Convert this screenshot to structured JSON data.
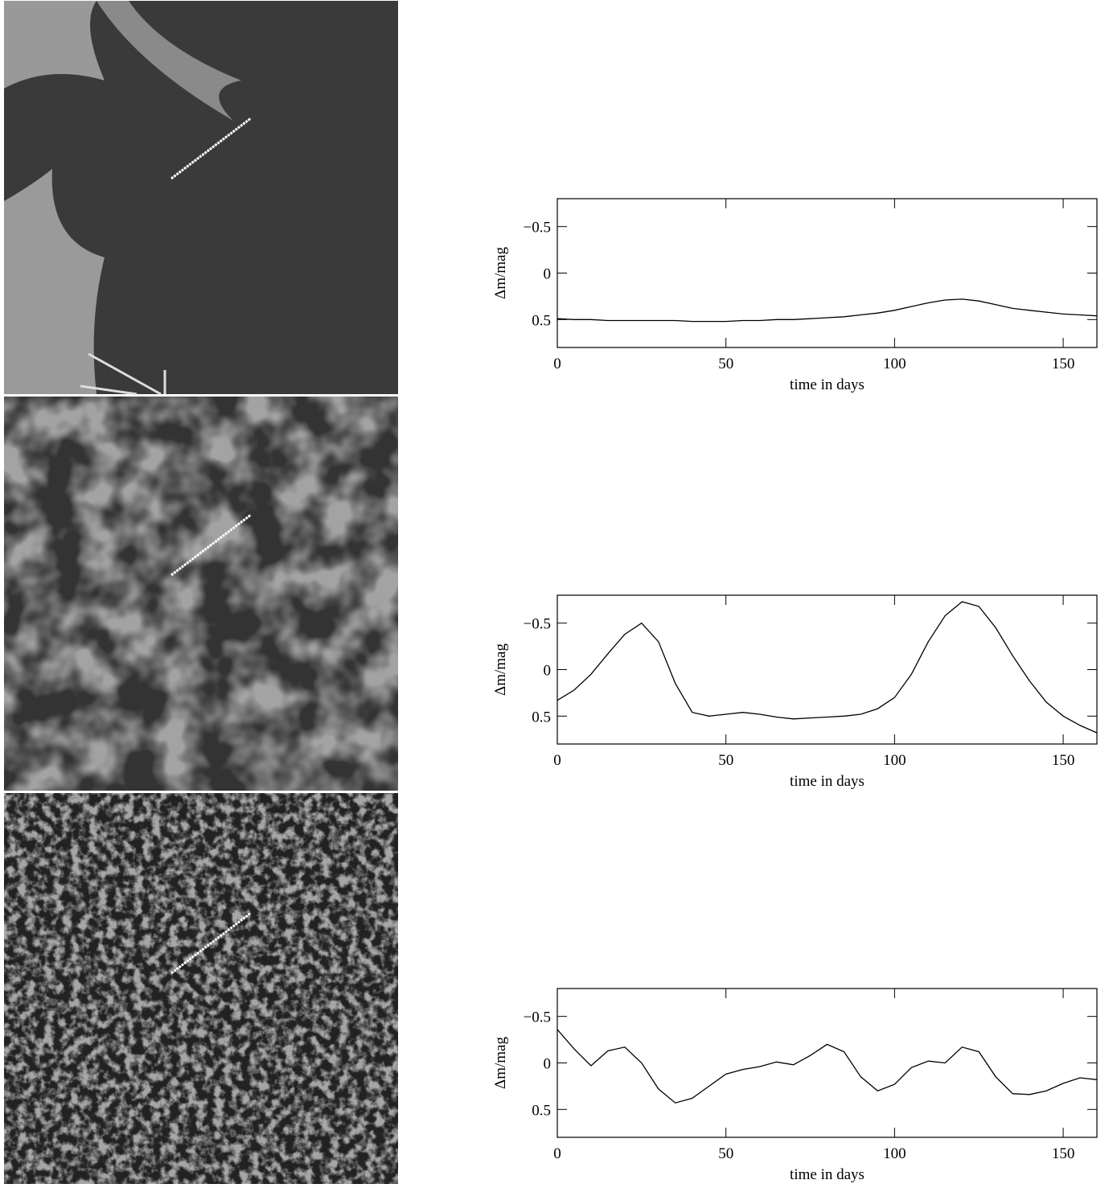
{
  "chart_data": [
    {
      "type": "line",
      "xlabel": "time in days",
      "ylabel": "Δm/mag",
      "color": "#000000",
      "x": [
        0,
        5,
        10,
        15,
        20,
        25,
        30,
        35,
        40,
        45,
        50,
        55,
        60,
        65,
        70,
        75,
        80,
        85,
        90,
        95,
        100,
        105,
        110,
        115,
        120,
        125,
        130,
        135,
        140,
        145,
        150,
        155,
        160
      ],
      "values": [
        0.49,
        0.5,
        0.5,
        0.51,
        0.51,
        0.51,
        0.51,
        0.51,
        0.52,
        0.52,
        0.52,
        0.51,
        0.51,
        0.5,
        0.5,
        0.49,
        0.48,
        0.47,
        0.45,
        0.43,
        0.4,
        0.36,
        0.32,
        0.29,
        0.28,
        0.3,
        0.34,
        0.38,
        0.4,
        0.42,
        0.44,
        0.45,
        0.46
      ],
      "xlim": [
        0,
        160
      ],
      "xticks": [
        0,
        50,
        100,
        150
      ],
      "ylim": [
        0.8,
        -0.8
      ],
      "yticks": [
        {
          "value": -0.5,
          "label": "−0.5"
        },
        0,
        0.5
      ]
    },
    {
      "type": "line",
      "xlabel": "time in days",
      "ylabel": "Δm/mag",
      "color": "#000000",
      "x": [
        0,
        5,
        10,
        15,
        20,
        25,
        30,
        35,
        40,
        45,
        50,
        55,
        60,
        65,
        70,
        75,
        80,
        85,
        90,
        95,
        100,
        105,
        110,
        115,
        120,
        125,
        130,
        135,
        140,
        145,
        150,
        155,
        160
      ],
      "values": [
        0.33,
        0.22,
        0.05,
        -0.17,
        -0.38,
        -0.5,
        -0.3,
        0.15,
        0.46,
        0.5,
        0.48,
        0.46,
        0.48,
        0.51,
        0.53,
        0.52,
        0.51,
        0.5,
        0.48,
        0.42,
        0.3,
        0.05,
        -0.3,
        -0.58,
        -0.73,
        -0.68,
        -0.45,
        -0.15,
        0.12,
        0.35,
        0.5,
        0.6,
        0.68
      ],
      "xlim": [
        0,
        160
      ],
      "xticks": [
        0,
        50,
        100,
        150
      ],
      "ylim": [
        0.8,
        -0.8
      ],
      "yticks": [
        {
          "value": -0.5,
          "label": "−0.5"
        },
        0,
        0.5
      ]
    },
    {
      "type": "line",
      "xlabel": "time in days",
      "ylabel": "Δm/mag",
      "color": "#000000",
      "x": [
        0,
        5,
        10,
        15,
        20,
        25,
        30,
        35,
        40,
        45,
        50,
        55,
        60,
        65,
        70,
        75,
        80,
        85,
        90,
        95,
        100,
        105,
        110,
        115,
        120,
        125,
        130,
        135,
        140,
        145,
        150,
        155,
        160
      ],
      "values": [
        -0.36,
        -0.15,
        0.03,
        -0.13,
        -0.17,
        0.0,
        0.28,
        0.43,
        0.38,
        0.25,
        0.12,
        0.07,
        0.04,
        -0.01,
        0.02,
        -0.08,
        -0.2,
        -0.12,
        0.15,
        0.3,
        0.23,
        0.05,
        -0.02,
        0.0,
        -0.17,
        -0.12,
        0.15,
        0.33,
        0.34,
        0.3,
        0.22,
        0.16,
        0.18
      ],
      "xlim": [
        0,
        160
      ],
      "xticks": [
        0,
        50,
        100,
        150
      ],
      "ylim": [
        0.8,
        -0.8
      ],
      "yticks": [
        {
          "value": -0.5,
          "label": "−0.5"
        },
        0,
        0.5
      ]
    }
  ]
}
